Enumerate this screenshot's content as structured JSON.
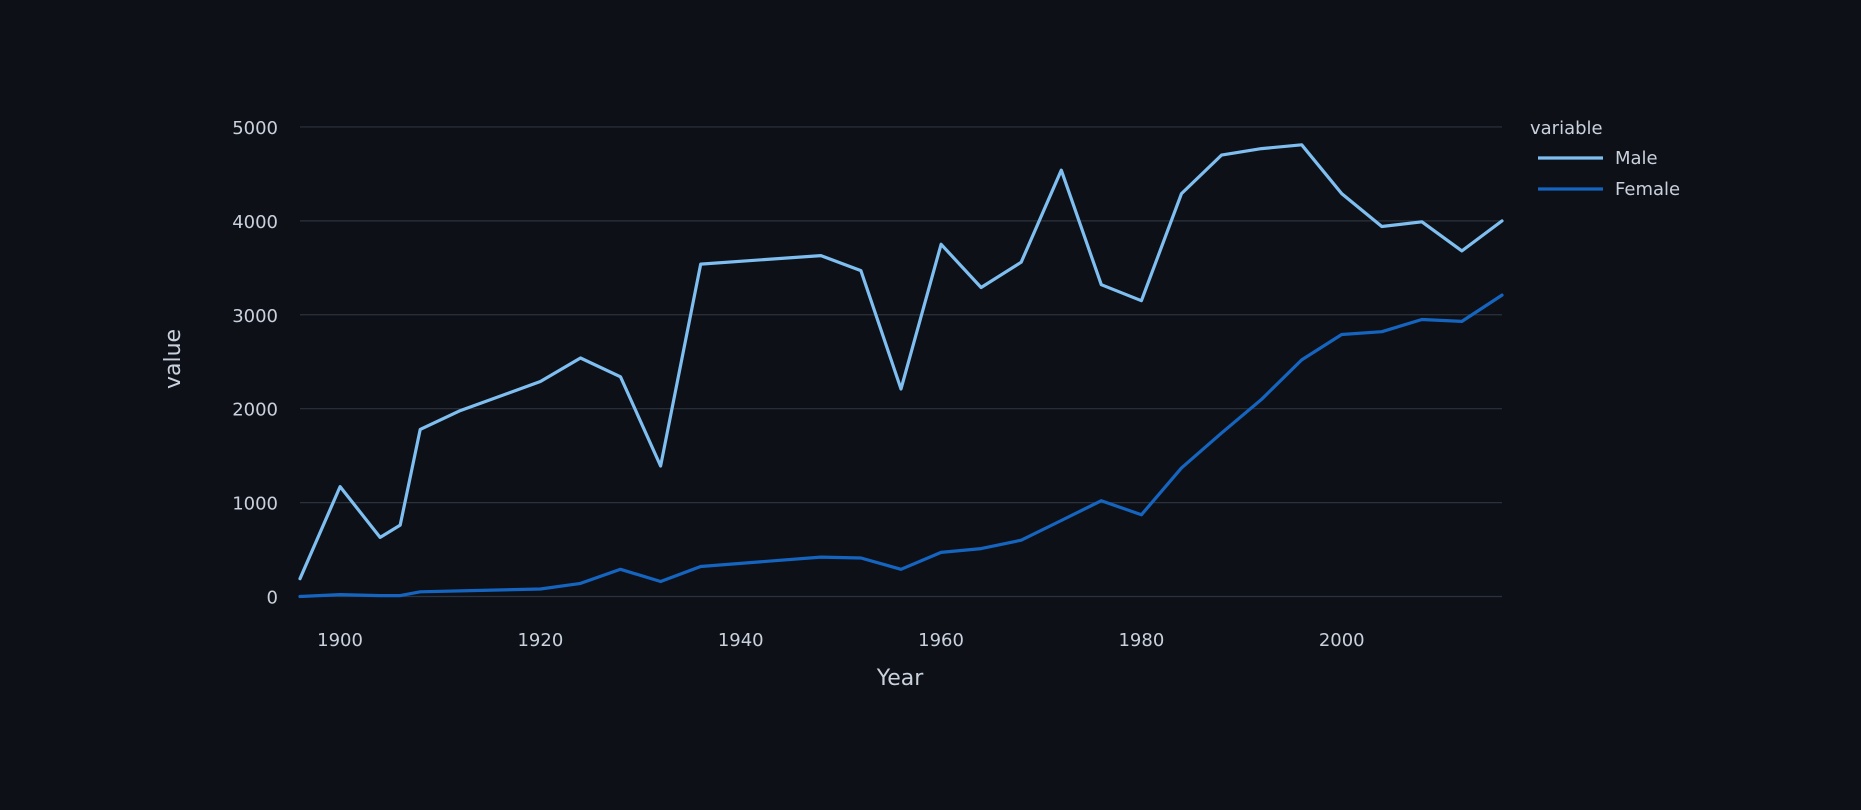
{
  "chart_data": {
    "type": "line",
    "xlabel": "Year",
    "ylabel": "value",
    "xlim": [
      1896,
      2016
    ],
    "ylim": [
      -250,
      5500
    ],
    "x_ticks": [
      1900,
      1920,
      1940,
      1960,
      1980,
      2000
    ],
    "y_ticks": [
      0,
      1000,
      2000,
      3000,
      4000,
      5000
    ],
    "grid": true,
    "legend": {
      "title": "variable",
      "placement": "right"
    },
    "x": [
      1896,
      1900,
      1904,
      1906,
      1908,
      1912,
      1920,
      1924,
      1928,
      1932,
      1936,
      1948,
      1952,
      1956,
      1960,
      1964,
      1968,
      1972,
      1976,
      1980,
      1984,
      1988,
      1992,
      1996,
      2000,
      2004,
      2008,
      2012,
      2016
    ],
    "series": [
      {
        "name": "Male",
        "color": "#7fbef0",
        "values": [
          190,
          1170,
          630,
          760,
          1780,
          1980,
          2290,
          2540,
          2340,
          1390,
          3540,
          3630,
          3470,
          2210,
          3750,
          3290,
          3560,
          4540,
          3320,
          3150,
          4290,
          4700,
          4770,
          4810,
          4290,
          3940,
          3990,
          3680,
          4000
        ]
      },
      {
        "name": "Female",
        "color": "#1565c0",
        "values": [
          0,
          20,
          10,
          10,
          50,
          60,
          80,
          140,
          290,
          160,
          320,
          420,
          410,
          290,
          470,
          510,
          600,
          810,
          1020,
          870,
          1370,
          1740,
          2100,
          2520,
          2790,
          2820,
          2950,
          2930,
          3210
        ]
      }
    ]
  }
}
